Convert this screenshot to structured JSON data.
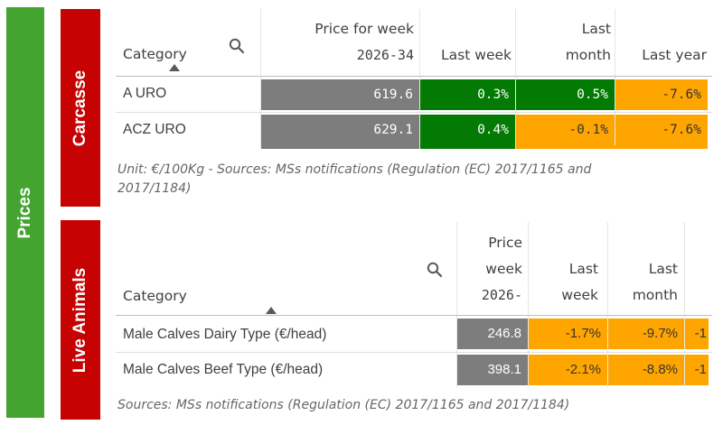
{
  "sidebar": {
    "label": "Prices",
    "color": "#43a52f"
  },
  "carcasse": {
    "label": "Carcasse",
    "headers": {
      "category": "Category",
      "price_line1": "Price for week",
      "price_line2": "2026-34",
      "last_week": "Last week",
      "last_month_line1": "Last",
      "last_month_line2": "month",
      "last_year": "Last year"
    },
    "rows": [
      {
        "category": "A URO",
        "price": "619.6",
        "last_week": "0.3%",
        "last_month": "0.5%",
        "last_year": "-7.6%"
      },
      {
        "category": "ACZ URO",
        "price": "629.1",
        "last_week": "0.4%",
        "last_month": "-0.1%",
        "last_year": "-7.6%"
      }
    ],
    "note": "Unit: €/100Kg - Sources: MSs notifications (Regulation (EC) 2017/1165 and 2017/1184)",
    "note_line1": "Unit: €/100Kg - Sources: MSs notifications (Regulation (EC) 2017/1165 and",
    "note_line2": "2017/1184)"
  },
  "live_animals": {
    "label": "Live Animals",
    "headers": {
      "category": "Category",
      "price_line1": "Price",
      "price_line2": "week",
      "price_line3": "2026-",
      "last_week_line1": "Last",
      "last_week_line2": "week",
      "last_month_line1": "Last",
      "last_month_line2": "month"
    },
    "rows": [
      {
        "category": "Male Calves Dairy Type (€/head)",
        "price": "246.8",
        "last_week": "-1.7%",
        "last_month": "-9.7%",
        "last_year": "-1"
      },
      {
        "category": "Male Calves Beef Type (€/head)",
        "price": "398.1",
        "last_week": "-2.1%",
        "last_month": "-8.8%",
        "last_year": "-1"
      }
    ],
    "note": "Sources: MSs notifications (Regulation (EC) 2017/1165 and 2017/1184)"
  },
  "colors": {
    "red_panel": "#c60202",
    "gray_cell": "#7d7d7d",
    "green_cell": "#037a03",
    "orange_cell": "#ffa500"
  },
  "icons": {
    "search": "search-icon",
    "sort": "sort-ascending-icon"
  }
}
